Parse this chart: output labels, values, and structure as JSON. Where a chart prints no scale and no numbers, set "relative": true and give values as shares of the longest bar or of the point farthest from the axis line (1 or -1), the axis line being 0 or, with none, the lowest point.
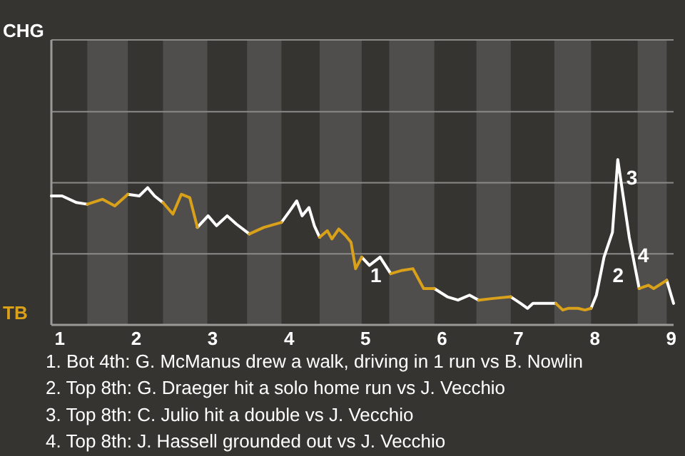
{
  "chart_data": {
    "type": "line",
    "relative": true,
    "ref_lines": [
      {
        "axis": "y",
        "value": 0.43,
        "color": "#8a8a88"
      },
      {
        "axis": "y",
        "value": 0.86,
        "color": "#8a8a88"
      },
      {
        "axis": "y",
        "value": 1.29,
        "color": "#8a8a88"
      }
    ],
    "x": [
      0.89,
      1.03,
      1.22,
      1.36,
      1.56,
      1.72,
      1.89,
      2.04,
      2.15,
      2.24,
      2.35,
      2.48,
      2.59,
      2.7,
      2.8,
      2.94,
      3.05,
      3.19,
      3.31,
      3.48,
      3.67,
      3.9,
      4.01,
      4.1,
      4.17,
      4.26,
      4.33,
      4.4,
      4.5,
      4.56,
      4.65,
      4.74,
      4.81,
      4.87,
      4.95,
      5.05,
      5.19,
      5.33,
      5.48,
      5.62,
      5.76,
      5.9,
      6.07,
      6.21,
      6.36,
      6.48,
      6.67,
      6.9,
      7.03,
      7.12,
      7.19,
      7.49,
      7.58,
      7.65,
      7.78,
      7.87,
      7.95,
      8.02,
      8.12,
      8.23,
      8.3,
      8.45,
      8.58,
      8.7,
      8.77,
      8.94,
      9.03
    ],
    "series": [
      {
        "name": "CHG",
        "color": "#ffffff",
        "values": [
          0.78,
          0.78,
          0.74,
          0.73,
          null,
          null,
          0.79,
          0.78,
          0.83,
          0.78,
          0.74,
          null,
          null,
          null,
          0.59,
          0.66,
          0.6,
          0.66,
          0.61,
          0.55,
          null,
          0.62,
          0.69,
          0.75,
          0.66,
          0.71,
          0.6,
          0.53,
          null,
          null,
          null,
          null,
          null,
          null,
          0.41,
          0.36,
          0.41,
          0.31,
          null,
          null,
          null,
          0.22,
          0.17,
          0.15,
          0.18,
          0.15,
          null,
          0.17,
          0.13,
          0.1,
          0.13,
          0.13,
          null,
          null,
          null,
          null,
          0.1,
          0.18,
          0.41,
          0.56,
          1,
          0.53,
          0.22,
          null,
          null,
          0.27,
          0.13
        ]
      },
      {
        "name": "TB",
        "color": "#d9a01a",
        "values": [
          null,
          null,
          null,
          0.73,
          0.76,
          0.72,
          0.79,
          null,
          null,
          null,
          0.74,
          0.67,
          0.79,
          0.77,
          0.59,
          null,
          null,
          null,
          null,
          0.55,
          0.59,
          0.62,
          null,
          null,
          null,
          null,
          null,
          0.53,
          0.57,
          0.52,
          0.58,
          0.54,
          0.5,
          0.34,
          0.41,
          null,
          null,
          0.31,
          0.33,
          0.34,
          0.22,
          0.22,
          null,
          null,
          null,
          0.15,
          0.16,
          0.17,
          null,
          null,
          null,
          0.13,
          0.09,
          0.1,
          0.1,
          0.09,
          0.1,
          null,
          null,
          null,
          null,
          null,
          0.22,
          0.24,
          0.22,
          0.27,
          null
        ]
      }
    ],
    "xlim": [
      0.89,
      9.03
    ],
    "xticks": [
      1,
      2,
      3,
      4,
      5,
      6,
      7,
      8,
      9
    ],
    "bands": [
      {
        "axis": "x",
        "from": 1.36,
        "to": 1.89,
        "color": "#4f4e4c"
      },
      {
        "axis": "x",
        "from": 2.35,
        "to": 2.93,
        "color": "#4f4e4c"
      },
      {
        "axis": "x",
        "from": 3.45,
        "to": 3.9,
        "color": "#4f4e4c"
      },
      {
        "axis": "x",
        "from": 4.4,
        "to": 4.95,
        "color": "#4f4e4c"
      },
      {
        "axis": "x",
        "from": 5.31,
        "to": 5.9,
        "color": "#4f4e4c"
      },
      {
        "axis": "x",
        "from": 6.45,
        "to": 6.9,
        "color": "#4f4e4c"
      },
      {
        "axis": "x",
        "from": 7.47,
        "to": 7.95,
        "color": "#4f4e4c"
      },
      {
        "axis": "x",
        "from": 8.56,
        "to": 8.94,
        "color": "#4f4e4c"
      }
    ],
    "annotations": [
      {
        "text": "1",
        "x": 4.95,
        "y": 0.41
      },
      {
        "text": "2",
        "x": 8.12,
        "y": 0.41
      },
      {
        "text": "3",
        "x": 8.3,
        "y": 1
      },
      {
        "text": "4",
        "x": 8.45,
        "y": 0.53
      },
      "1. Bot 4th: G. McManus drew a walk, driving in 1 run vs B. Nowlin",
      "2. Top 8th: G. Draeger hit a solo home run vs J. Vecchio",
      "3. Top 8th: C. Julio hit a double vs J. Vecchio",
      "4. Top 8th: J. Hassell grounded out vs J. Vecchio"
    ]
  }
}
